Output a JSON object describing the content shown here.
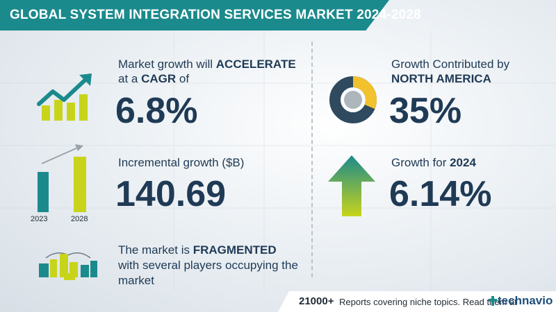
{
  "header": {
    "title": "GLOBAL SYSTEM INTEGRATION SERVICES MARKET 2024-2028"
  },
  "growth": {
    "line1_prefix": "Market growth will ",
    "line1_bold": "ACCELERATE",
    "line2_prefix": "at a ",
    "line2_bold": "CAGR",
    "line2_suffix": "  of",
    "value": "6.8%",
    "icon": "growth-chart-icon"
  },
  "incremental": {
    "label": "Incremental growth ($B)",
    "value": "140.69",
    "bar_labels": [
      "2023",
      "2028"
    ],
    "icon": "bar-comparison-icon"
  },
  "market": {
    "line1_prefix": "The market is ",
    "line1_bold": "FRAGMENTED",
    "line2": "with several players occupying the",
    "line3": "market",
    "icon": "city-buildings-icon"
  },
  "region": {
    "line1": "Growth Contributed by",
    "line2_bold": "NORTH AMERICA",
    "value": "35%",
    "icon": "donut-chart-icon"
  },
  "year_growth": {
    "label_prefix": "Growth for ",
    "label_bold": "2024",
    "value": "6.14%",
    "icon": "up-arrow-icon"
  },
  "footer": {
    "count": "21000+",
    "text": "Reports covering niche topics. Read them at",
    "brand": "technavio"
  },
  "colors": {
    "teal": "#1b8a8c",
    "navy": "#1f3a55",
    "lime": "#c8d41a",
    "dark_slate": "#2f4a5e",
    "gold": "#f2c12e",
    "gray": "#aeb6bd"
  }
}
